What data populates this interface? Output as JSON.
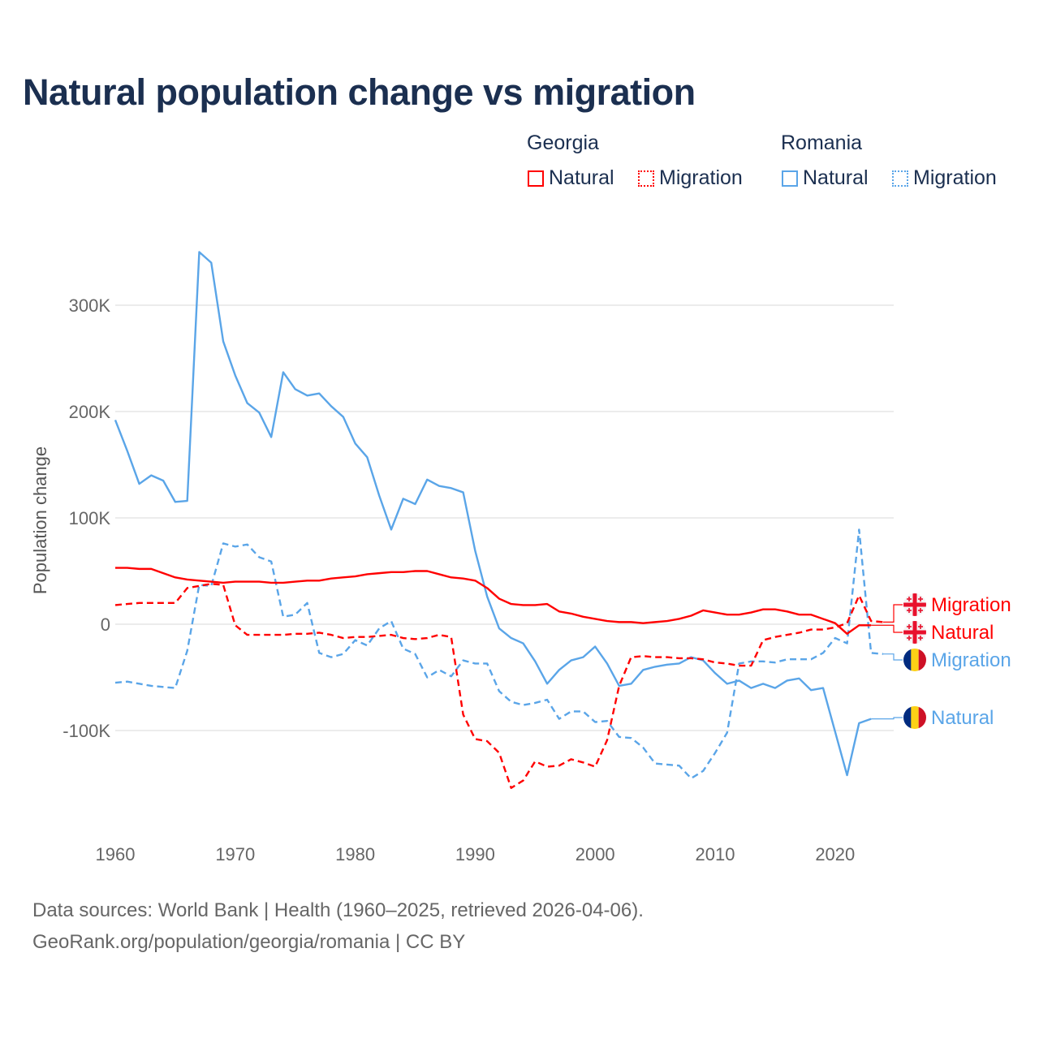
{
  "title": "Natural population change vs migration",
  "legend": {
    "groups": [
      {
        "name": "Georgia",
        "items": [
          "Natural",
          "Migration"
        ],
        "color": "#ff0000"
      },
      {
        "name": "Romania",
        "items": [
          "Natural",
          "Migration"
        ],
        "color": "#5aa5e8"
      }
    ]
  },
  "source": {
    "line1": "Data sources: World Bank | Health (1960–2025, retrieved 2026-04-06).",
    "line2": "GeoRank.org/population/georgia/romania | CC BY"
  },
  "chart_data": {
    "type": "line",
    "title": "Natural population change vs migration",
    "xlabel": "",
    "ylabel": "Population change",
    "xlim": [
      1960,
      2025
    ],
    "ylim": [
      -170000,
      360000
    ],
    "x_ticks": [
      1960,
      1970,
      1980,
      1990,
      2000,
      2010,
      2020
    ],
    "y_ticks": [
      {
        "v": 300000,
        "label": "300K"
      },
      {
        "v": 200000,
        "label": "200K"
      },
      {
        "v": 100000,
        "label": "100K"
      },
      {
        "v": 0,
        "label": "0"
      },
      {
        "v": -100000,
        "label": "-100K"
      }
    ],
    "grid": true,
    "legend_position": "top-right",
    "start_year": 1960,
    "series": [
      {
        "name": "Georgia Natural",
        "end_label": "Natural",
        "flag": "georgia",
        "color": "#ff0000",
        "dash": false,
        "values": [
          53,
          53,
          52,
          52,
          48,
          44,
          42,
          41,
          40,
          39,
          40,
          40,
          40,
          39,
          39,
          40,
          41,
          41,
          43,
          44,
          45,
          47,
          48,
          49,
          49,
          50,
          50,
          47,
          44,
          43,
          41,
          34,
          24,
          19,
          18,
          18,
          19,
          12,
          10,
          7,
          5,
          3,
          2,
          2,
          1,
          2,
          3,
          5,
          8,
          13,
          11,
          9,
          9,
          11,
          14,
          14,
          12,
          9,
          9,
          5,
          1,
          -9,
          -1,
          -1
        ]
      },
      {
        "name": "Georgia Migration",
        "end_label": "Migration",
        "flag": "georgia",
        "color": "#ff0000",
        "dash": true,
        "values": [
          18,
          19,
          20,
          20,
          20,
          20,
          34,
          36,
          38,
          37,
          -1,
          -10,
          -10,
          -10,
          -10,
          -9,
          -9,
          -8,
          -10,
          -13,
          -12,
          -12,
          -11,
          -10,
          -13,
          -14,
          -13,
          -10,
          -12,
          -85,
          -108,
          -110,
          -121,
          -154,
          -147,
          -129,
          -134,
          -133,
          -127,
          -130,
          -134,
          -109,
          -58,
          -31,
          -30,
          -31,
          -31,
          -32,
          -32,
          -33,
          -36,
          -37,
          -39,
          -39,
          -15,
          -12,
          -10,
          -8,
          -5,
          -5,
          -3,
          1,
          27,
          3,
          2
        ]
      },
      {
        "name": "Romania Natural",
        "end_label": "Natural",
        "flag": "romania",
        "color": "#5aa5e8",
        "dash": false,
        "values": [
          192,
          163,
          132,
          140,
          135,
          115,
          116,
          350,
          340,
          266,
          234,
          208,
          199,
          176,
          237,
          221,
          215,
          217,
          205,
          195,
          170,
          157,
          121,
          89,
          118,
          113,
          136,
          130,
          128,
          124,
          69,
          26,
          -4,
          -13,
          -18,
          -35,
          -56,
          -43,
          -34,
          -31,
          -21,
          -37,
          -58,
          -56,
          -43,
          -40,
          -38,
          -37,
          -31,
          -34,
          -46,
          -56,
          -53,
          -60,
          -56,
          -60,
          -53,
          -51,
          -62,
          -60,
          -101,
          -142,
          -93,
          -89
        ]
      },
      {
        "name": "Romania Migration",
        "end_label": "Migration",
        "flag": "romania",
        "color": "#5aa5e8",
        "dash": true,
        "values": [
          -55,
          -54,
          -56,
          -58,
          -59,
          -60,
          -25,
          37,
          36,
          76,
          73,
          75,
          63,
          59,
          7,
          9,
          20,
          -27,
          -31,
          -28,
          -15,
          -20,
          -4,
          3,
          -23,
          -28,
          -50,
          -43,
          -49,
          -34,
          -37,
          -37,
          -63,
          -73,
          -76,
          -74,
          -71,
          -89,
          -82,
          -82,
          -92,
          -91,
          -106,
          -107,
          -116,
          -131,
          -132,
          -133,
          -145,
          -138,
          -121,
          -102,
          -37,
          -35,
          -35,
          -36,
          -33,
          -33,
          -33,
          -27,
          -13,
          -18,
          89,
          -27,
          -28
        ]
      }
    ],
    "value_unit": "thousands"
  }
}
